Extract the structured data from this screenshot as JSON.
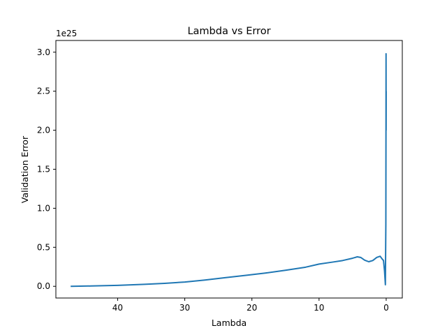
{
  "chart_data": {
    "type": "line",
    "title": "Lambda vs Error",
    "xlabel": "Lambda",
    "ylabel": "Validation Error",
    "offset_text": "1e25",
    "x_inverted": true,
    "xlim": [
      49.2,
      -2.4
    ],
    "ylim": [
      -0.15,
      3.15
    ],
    "y_scale_factor": 1e+25,
    "xticks": [
      40,
      30,
      20,
      10,
      0
    ],
    "xtick_labels": [
      "40",
      "30",
      "20",
      "10",
      "0"
    ],
    "yticks": [
      0.0,
      0.5,
      1.0,
      1.5,
      2.0,
      2.5,
      3.0
    ],
    "ytick_labels": [
      "0.0",
      "0.5",
      "1.0",
      "1.5",
      "2.0",
      "2.5",
      "3.0"
    ],
    "grid": false,
    "legend": "none",
    "series": [
      {
        "color": "#1f77b4",
        "points": [
          [
            47.0,
            0.0
          ],
          [
            44.0,
            0.004
          ],
          [
            40.0,
            0.012
          ],
          [
            36.0,
            0.026
          ],
          [
            33.0,
            0.038
          ],
          [
            30.0,
            0.055
          ],
          [
            27.0,
            0.08
          ],
          [
            24.0,
            0.11
          ],
          [
            21.0,
            0.14
          ],
          [
            18.0,
            0.17
          ],
          [
            15.0,
            0.205
          ],
          [
            12.0,
            0.245
          ],
          [
            10.0,
            0.285
          ],
          [
            8.0,
            0.31
          ],
          [
            6.5,
            0.33
          ],
          [
            5.0,
            0.36
          ],
          [
            4.3,
            0.378
          ],
          [
            3.8,
            0.37
          ],
          [
            3.2,
            0.335
          ],
          [
            2.6,
            0.315
          ],
          [
            2.0,
            0.33
          ],
          [
            1.4,
            0.37
          ],
          [
            0.9,
            0.385
          ],
          [
            0.6,
            0.35
          ],
          [
            0.4,
            0.33
          ],
          [
            0.25,
            0.2
          ],
          [
            0.12,
            0.02
          ],
          [
            0.05,
            0.8
          ],
          [
            0.03,
            2.0
          ],
          [
            0.02,
            2.98
          ],
          [
            0.01,
            2.0
          ],
          [
            0.0,
            2.5
          ]
        ]
      }
    ]
  }
}
